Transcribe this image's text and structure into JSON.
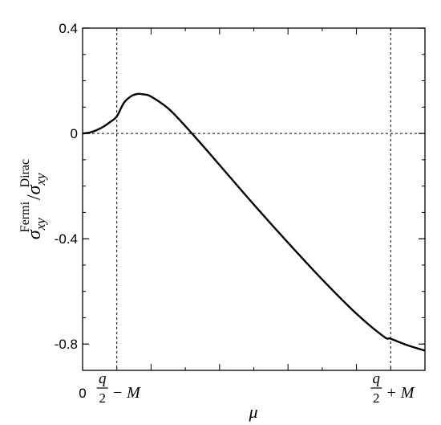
{
  "chart_data": {
    "type": "line",
    "title": "",
    "xlabel": "μ",
    "ylabel": {
      "symbol": "σ",
      "num_sup": "Fermi",
      "num_sub": "xy",
      "slash": "/",
      "den_sup": "Dirac",
      "den_sub": "xy"
    },
    "xlim": [
      0,
      1
    ],
    "ylim": [
      -0.9,
      0.4
    ],
    "yticks": [
      0.4,
      0,
      -0.4,
      -0.8
    ],
    "ytick_labels": [
      "0.4",
      "0",
      "-0.4",
      "-0.8"
    ],
    "x_minor_ticks": [
      0.1,
      0.2,
      0.3,
      0.4,
      0.5,
      0.6,
      0.7,
      0.8,
      0.9
    ],
    "y_minor_ticks": [
      0.3,
      0.2,
      0.1,
      -0.1,
      -0.2,
      -0.3,
      -0.5,
      -0.6,
      -0.7
    ],
    "xtick_labels": [
      {
        "x": 0,
        "kind": "plain",
        "text": "0"
      },
      {
        "x": 0.1,
        "kind": "frac",
        "num": "q",
        "den": "2",
        "rest": "− M"
      },
      {
        "x": 0.9,
        "kind": "frac",
        "num": "q",
        "den": "2",
        "rest": "+ M"
      }
    ],
    "hline": {
      "y": 0,
      "style": "dashed"
    },
    "vlines": [
      {
        "x": 0.1,
        "style": "dashed"
      },
      {
        "x": 0.9,
        "style": "dashed"
      }
    ],
    "series": [
      {
        "x": [
          0,
          0.02,
          0.04,
          0.06,
          0.08,
          0.1,
          0.12,
          0.14,
          0.16,
          0.18,
          0.2,
          0.25,
          0.3,
          0.35,
          0.4,
          0.5,
          0.6,
          0.7,
          0.8,
          0.88,
          0.9,
          0.95,
          1.0
        ],
        "y": [
          0,
          0.003,
          0.012,
          0.025,
          0.043,
          0.065,
          0.115,
          0.14,
          0.15,
          0.148,
          0.14,
          0.095,
          0.028,
          -0.045,
          -0.12,
          -0.27,
          -0.415,
          -0.555,
          -0.685,
          -0.772,
          -0.78,
          -0.805,
          -0.825
        ]
      }
    ]
  }
}
